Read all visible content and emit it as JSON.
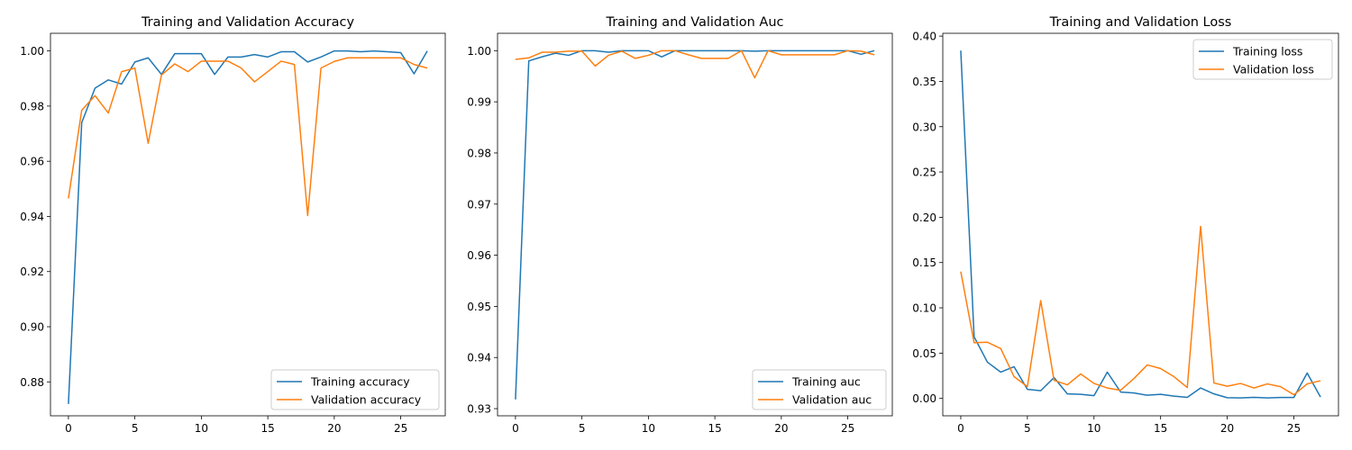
{
  "chart_data": [
    {
      "type": "line",
      "title": "Training and Validation Accuracy",
      "xlabel": "",
      "ylabel": "",
      "xlim": [
        -1.35,
        28.35
      ],
      "ylim": [
        0.8677,
        1.0064
      ],
      "xticks": [
        0,
        5,
        10,
        15,
        20,
        25
      ],
      "yticks": [
        0.88,
        0.9,
        0.92,
        0.94,
        0.96,
        0.98,
        1.0
      ],
      "ytick_labels": [
        "0.88",
        "0.90",
        "0.92",
        "0.94",
        "0.96",
        "0.98",
        "1.00"
      ],
      "grid": false,
      "legend_position": "lower-right",
      "x": [
        0,
        1,
        2,
        3,
        4,
        5,
        6,
        7,
        8,
        9,
        10,
        11,
        12,
        13,
        14,
        15,
        16,
        17,
        18,
        19,
        20,
        21,
        22,
        23,
        24,
        25,
        26,
        27
      ],
      "series": [
        {
          "name": "Training accuracy",
          "color": "#1f77b4",
          "values": [
            0.872,
            0.974,
            0.9865,
            0.9895,
            0.988,
            0.996,
            0.9975,
            0.9915,
            0.999,
            0.999,
            0.999,
            0.9915,
            0.9978,
            0.9978,
            0.9987,
            0.9978,
            0.9997,
            0.9997,
            0.996,
            0.9978,
            1.0,
            1.0,
            0.9997,
            1.0,
            0.9997,
            0.9994,
            0.9917,
            1.0
          ]
        },
        {
          "name": "Validation accuracy",
          "color": "#ff7f0e",
          "values": [
            0.9465,
            0.9785,
            0.9838,
            0.9775,
            0.9925,
            0.9938,
            0.9665,
            0.9913,
            0.9953,
            0.9925,
            0.9963,
            0.9963,
            0.9963,
            0.9938,
            0.9888,
            0.9925,
            0.9963,
            0.9951,
            0.9403,
            0.9938,
            0.9962,
            0.9975,
            0.9975,
            0.9975,
            0.9975,
            0.9975,
            0.9951,
            0.9938
          ]
        }
      ]
    },
    {
      "type": "line",
      "title": "Training and Validation Auc",
      "xlabel": "",
      "ylabel": "",
      "xlim": [
        -1.35,
        28.35
      ],
      "ylim": [
        0.9286,
        1.0034
      ],
      "xticks": [
        0,
        5,
        10,
        15,
        20,
        25
      ],
      "yticks": [
        0.93,
        0.94,
        0.95,
        0.96,
        0.97,
        0.98,
        0.99,
        1.0
      ],
      "ytick_labels": [
        "0.93",
        "0.94",
        "0.95",
        "0.96",
        "0.97",
        "0.98",
        "0.99",
        "1.00"
      ],
      "grid": false,
      "legend_position": "lower-right",
      "x": [
        0,
        1,
        2,
        3,
        4,
        5,
        6,
        7,
        8,
        9,
        10,
        11,
        12,
        13,
        14,
        15,
        16,
        17,
        18,
        19,
        20,
        21,
        22,
        23,
        24,
        25,
        26,
        27
      ],
      "series": [
        {
          "name": "Training auc",
          "color": "#1f77b4",
          "values": [
            0.9318,
            0.998,
            0.9988,
            0.9995,
            0.9991,
            1.0,
            1.0,
            0.9997,
            1.0,
            1.0,
            1.0,
            0.9988,
            1.0,
            1.0,
            1.0,
            1.0,
            1.0,
            1.0,
            0.9999,
            1.0,
            1.0,
            1.0,
            1.0,
            1.0,
            1.0,
            1.0,
            0.9993,
            1.0
          ]
        },
        {
          "name": "Validation auc",
          "color": "#ff7f0e",
          "values": [
            0.9983,
            0.9986,
            0.9997,
            0.9997,
            0.9999,
            0.9999,
            0.997,
            0.9991,
            0.9999,
            0.9985,
            0.9991,
            1.0,
            1.0,
            0.9992,
            0.9985,
            0.9985,
            0.9985,
            1.0,
            0.9947,
            1.0,
            0.9992,
            0.9992,
            0.9992,
            0.9992,
            0.9992,
            1.0,
            0.9999,
            0.9992
          ]
        }
      ]
    },
    {
      "type": "line",
      "title": "Training and Validation Loss",
      "xlabel": "",
      "ylabel": "",
      "xlim": [
        -1.35,
        28.35
      ],
      "ylim": [
        -0.0192,
        0.4031
      ],
      "xticks": [
        0,
        5,
        10,
        15,
        20,
        25
      ],
      "yticks": [
        0.0,
        0.05,
        0.1,
        0.15,
        0.2,
        0.25,
        0.3,
        0.35,
        0.4
      ],
      "ytick_labels": [
        "0.00",
        "0.05",
        "0.10",
        "0.15",
        "0.20",
        "0.25",
        "0.30",
        "0.35",
        "0.40"
      ],
      "grid": false,
      "legend_position": "upper-right",
      "x": [
        0,
        1,
        2,
        3,
        4,
        5,
        6,
        7,
        8,
        9,
        10,
        11,
        12,
        13,
        14,
        15,
        16,
        17,
        18,
        19,
        20,
        21,
        22,
        23,
        24,
        25,
        26,
        27
      ],
      "series": [
        {
          "name": "Training loss",
          "color": "#1f77b4",
          "values": [
            0.384,
            0.068,
            0.04,
            0.029,
            0.035,
            0.01,
            0.0085,
            0.023,
            0.005,
            0.0045,
            0.003,
            0.029,
            0.007,
            0.006,
            0.0035,
            0.0045,
            0.0025,
            0.0012,
            0.0115,
            0.005,
            0.0008,
            0.0005,
            0.0012,
            0.0006,
            0.001,
            0.001,
            0.028,
            0.0015
          ]
        },
        {
          "name": "Validation loss",
          "color": "#ff7f0e",
          "values": [
            0.14,
            0.0615,
            0.062,
            0.055,
            0.024,
            0.013,
            0.108,
            0.02,
            0.015,
            0.027,
            0.0165,
            0.0115,
            0.009,
            0.022,
            0.037,
            0.033,
            0.024,
            0.012,
            0.19,
            0.017,
            0.0135,
            0.0165,
            0.0115,
            0.016,
            0.013,
            0.004,
            0.016,
            0.0195
          ]
        }
      ]
    }
  ]
}
